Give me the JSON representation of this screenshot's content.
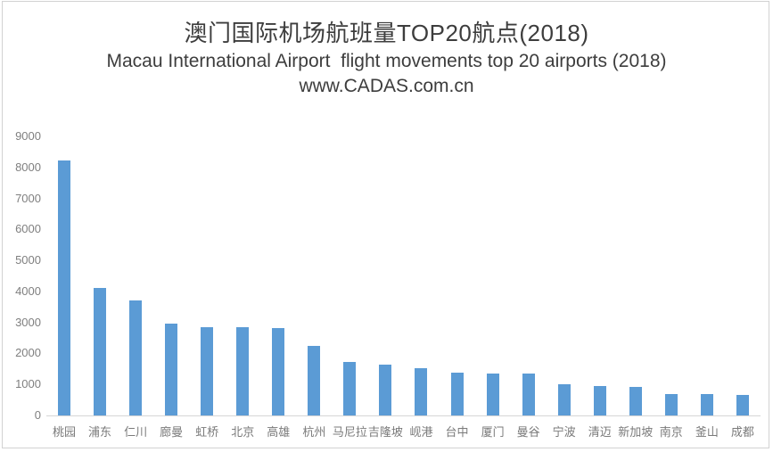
{
  "chart": {
    "title": "澳门国际机场航班量TOP20航点(2018)",
    "subtitle": "Macau International Airport  flight movements top 20 airports (2018)",
    "source": "www.CADAS.com.cn"
  },
  "chart_data": {
    "type": "bar",
    "title": "澳门国际机场航班量TOP20航点(2018)",
    "subtitle": "Macau International Airport  flight movements top 20 airports (2018)",
    "source_watermark": "www.CADAS.com.cn",
    "categories": [
      "桃园",
      "浦东",
      "仁川",
      "廊曼",
      "虹桥",
      "北京",
      "高雄",
      "杭州",
      "马尼拉",
      "吉隆坡",
      "岘港",
      "台中",
      "厦门",
      "曼谷",
      "宁波",
      "清迈",
      "新加坡",
      "南京",
      "釜山",
      "成都"
    ],
    "values": [
      8220,
      4120,
      3720,
      2950,
      2860,
      2840,
      2810,
      2250,
      1740,
      1640,
      1520,
      1380,
      1360,
      1350,
      1000,
      960,
      910,
      700,
      690,
      670
    ],
    "xlabel": "",
    "ylabel": "",
    "ylim": [
      0,
      9000
    ],
    "ytick_interval": 1000,
    "ytick_labels": [
      "0",
      "1000",
      "2000",
      "3000",
      "4000",
      "5000",
      "6000",
      "7000",
      "8000",
      "9000"
    ],
    "grid": "off",
    "legend": "none",
    "bar_color": "#5B9BD5",
    "axis_line_color": "#D6D6D6",
    "tick_label_color": "#7F7F7F",
    "title_color": "#3D3D3D"
  }
}
